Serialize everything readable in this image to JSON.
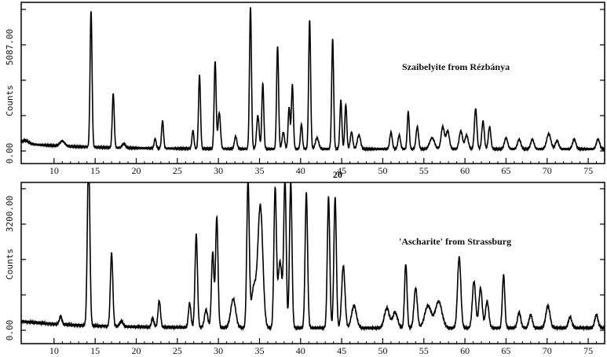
{
  "chart_data": [
    {
      "type": "line",
      "annotation": "Szaibelyite from Rézbánya",
      "xlabel": "2θ",
      "ylabel": "Counts",
      "xlim": [
        6,
        77
      ],
      "ylim": [
        0,
        5087
      ],
      "x_ticks": [
        10,
        15,
        20,
        25,
        30,
        35,
        40,
        45,
        50,
        55,
        60,
        65,
        70,
        75
      ],
      "y_tick_labels": [
        "5087.00",
        "0.00"
      ],
      "grid": false,
      "baseline": 200,
      "peaks": [
        [
          6.5,
          120,
          0.4
        ],
        [
          11,
          180,
          0.3
        ],
        [
          14.5,
          4900,
          0.12
        ],
        [
          17.2,
          1950,
          0.12
        ],
        [
          18.5,
          150,
          0.2
        ],
        [
          22.3,
          350,
          0.12
        ],
        [
          23.2,
          1000,
          0.12
        ],
        [
          26.9,
          650,
          0.12
        ],
        [
          27.7,
          2650,
          0.12
        ],
        [
          29.6,
          3150,
          0.12
        ],
        [
          30.1,
          1300,
          0.15
        ],
        [
          32.1,
          450,
          0.15
        ],
        [
          33.9,
          5087,
          0.12
        ],
        [
          34.8,
          1200,
          0.15
        ],
        [
          35.4,
          2350,
          0.12
        ],
        [
          37.2,
          3700,
          0.12
        ],
        [
          37.9,
          600,
          0.15
        ],
        [
          38.6,
          1500,
          0.12
        ],
        [
          39.0,
          2300,
          0.12
        ],
        [
          40.1,
          900,
          0.12
        ],
        [
          41.1,
          4650,
          0.12
        ],
        [
          42.0,
          400,
          0.2
        ],
        [
          43.9,
          3950,
          0.12
        ],
        [
          44.9,
          1750,
          0.12
        ],
        [
          45.5,
          1600,
          0.12
        ],
        [
          46.2,
          600,
          0.15
        ],
        [
          47.1,
          500,
          0.2
        ],
        [
          51.0,
          600,
          0.15
        ],
        [
          52.0,
          500,
          0.15
        ],
        [
          53.1,
          1350,
          0.12
        ],
        [
          54.2,
          800,
          0.15
        ],
        [
          56.0,
          400,
          0.3
        ],
        [
          57.3,
          800,
          0.2
        ],
        [
          57.9,
          650,
          0.2
        ],
        [
          59.5,
          650,
          0.2
        ],
        [
          60.2,
          500,
          0.2
        ],
        [
          61.3,
          1450,
          0.15
        ],
        [
          62.2,
          1000,
          0.15
        ],
        [
          63.0,
          800,
          0.15
        ],
        [
          65.0,
          400,
          0.2
        ],
        [
          66.6,
          350,
          0.2
        ],
        [
          68.2,
          350,
          0.2
        ],
        [
          70.2,
          550,
          0.25
        ],
        [
          71.2,
          300,
          0.2
        ],
        [
          73.3,
          350,
          0.2
        ],
        [
          76.2,
          350,
          0.2
        ]
      ]
    },
    {
      "type": "line",
      "annotation": "'Ascharite' from Strassburg",
      "xlabel": "",
      "ylabel": "Counts",
      "xlim": [
        6,
        77
      ],
      "ylim": [
        0,
        3200
      ],
      "x_ticks": [
        10,
        15,
        20,
        25,
        30,
        35,
        40,
        45,
        50,
        55,
        60,
        65,
        70,
        75
      ],
      "y_tick_labels": [
        "3200.00",
        "0.00"
      ],
      "grid": false,
      "baseline": 150,
      "peaks": [
        [
          10.8,
          180,
          0.15
        ],
        [
          14.2,
          3900,
          0.15
        ],
        [
          17.0,
          1650,
          0.15
        ],
        [
          18.2,
          120,
          0.2
        ],
        [
          22.0,
          200,
          0.15
        ],
        [
          22.8,
          600,
          0.15
        ],
        [
          26.5,
          550,
          0.15
        ],
        [
          27.3,
          2100,
          0.15
        ],
        [
          28.5,
          400,
          0.2
        ],
        [
          29.3,
          1700,
          0.15
        ],
        [
          29.8,
          2500,
          0.15
        ],
        [
          31.8,
          650,
          0.3
        ],
        [
          33.6,
          3300,
          0.15
        ],
        [
          34.3,
          900,
          0.3
        ],
        [
          35.1,
          2750,
          0.3
        ],
        [
          36.9,
          3100,
          0.15
        ],
        [
          37.5,
          1500,
          0.25
        ],
        [
          38.1,
          3300,
          0.15
        ],
        [
          38.8,
          3300,
          0.15
        ],
        [
          40.7,
          3050,
          0.15
        ],
        [
          43.4,
          2950,
          0.15
        ],
        [
          44.2,
          2950,
          0.15
        ],
        [
          45.2,
          1400,
          0.2
        ],
        [
          46.5,
          500,
          0.3
        ],
        [
          50.5,
          450,
          0.3
        ],
        [
          51.5,
          350,
          0.3
        ],
        [
          52.8,
          1450,
          0.15
        ],
        [
          54.0,
          900,
          0.2
        ],
        [
          55.5,
          500,
          0.4
        ],
        [
          56.8,
          600,
          0.4
        ],
        [
          59.3,
          1600,
          0.2
        ],
        [
          61.1,
          1050,
          0.2
        ],
        [
          61.9,
          900,
          0.2
        ],
        [
          62.7,
          600,
          0.2
        ],
        [
          64.7,
          1200,
          0.15
        ],
        [
          66.6,
          350,
          0.2
        ],
        [
          68.0,
          300,
          0.2
        ],
        [
          70.1,
          500,
          0.25
        ],
        [
          72.8,
          250,
          0.2
        ],
        [
          76.0,
          300,
          0.2
        ]
      ]
    }
  ]
}
